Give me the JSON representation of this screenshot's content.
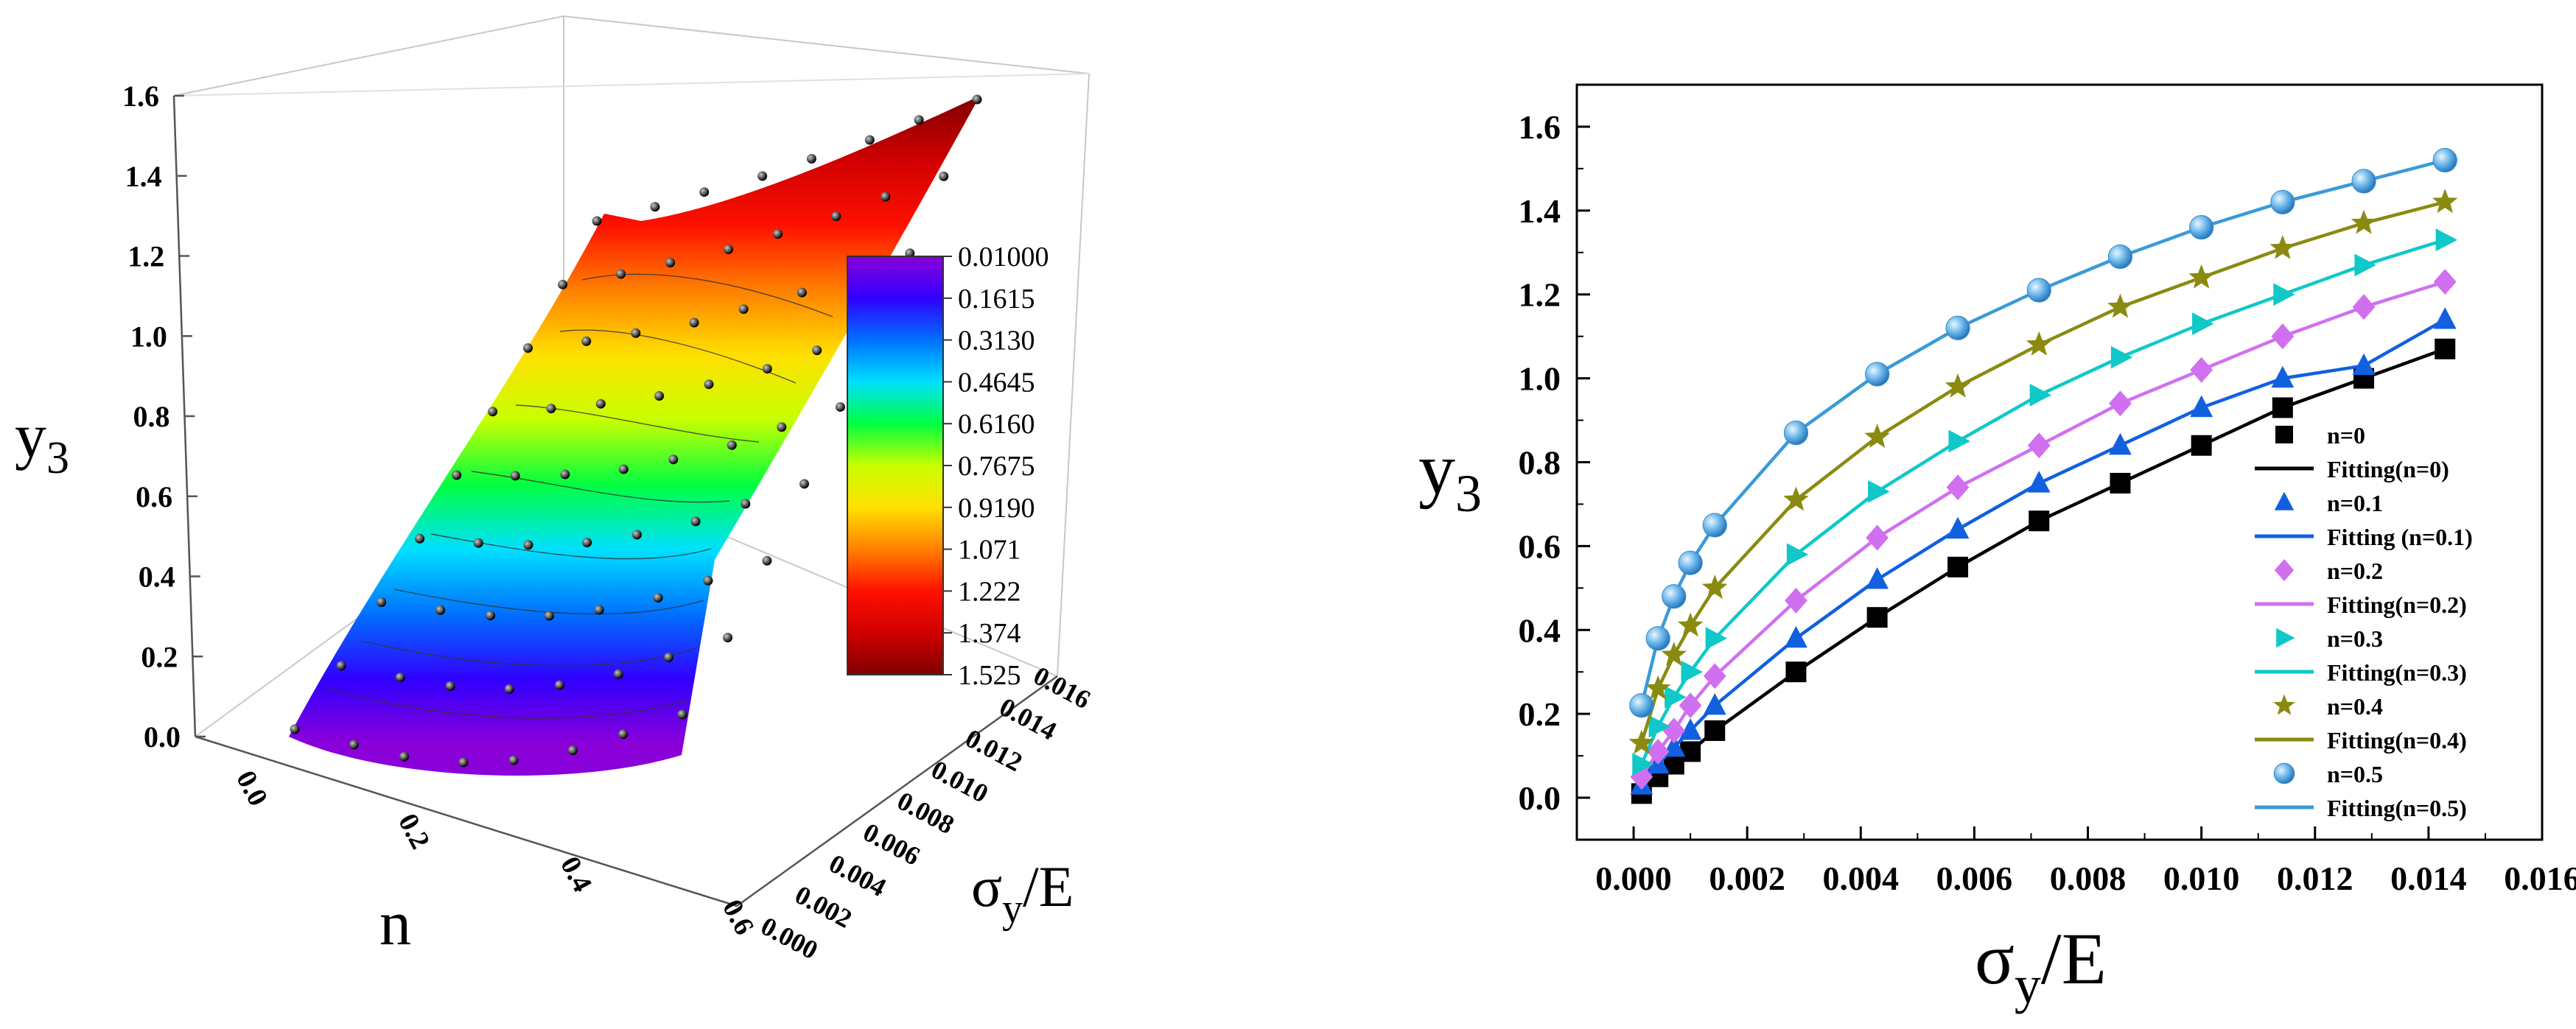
{
  "chart_data": [
    {
      "type": "surface",
      "xlabel": "n",
      "ylabel": "σ",
      "ylabel_sub": "y",
      "ylabel_tail": "/E",
      "zlabel": "y",
      "zlabel_sub": "3",
      "xticks": [
        "0.0",
        "0.2",
        "0.4",
        "0.6"
      ],
      "yticks": [
        "0.000",
        "0.002",
        "0.004",
        "0.006",
        "0.008",
        "0.010",
        "0.012",
        "0.014",
        "0.016"
      ],
      "zticks": [
        "0.0",
        "0.2",
        "0.4",
        "0.6",
        "0.8",
        "1.0",
        "1.2",
        "1.4",
        "1.6"
      ],
      "xlim": [
        0,
        0.6
      ],
      "ylim": [
        0,
        0.016
      ],
      "zlim": [
        0,
        1.6
      ],
      "colorbar": {
        "labels": [
          "0.01000",
          "0.1615",
          "0.3130",
          "0.4645",
          "0.6160",
          "0.7675",
          "0.9190",
          "1.071",
          "1.222",
          "1.374",
          "1.525"
        ],
        "colors": [
          "#8a00d8",
          "#3000ff",
          "#0070ff",
          "#00e0ff",
          "#00ff40",
          "#c8ff00",
          "#ffe000",
          "#ff8000",
          "#ff1000",
          "#d00000",
          "#800000"
        ]
      }
    },
    {
      "type": "line",
      "xlabel": "σ",
      "xlabel_sub": "y",
      "xlabel_tail": "/E",
      "ylabel": "y",
      "ylabel_sub": "3",
      "xlim": [
        -0.001,
        0.016
      ],
      "ylim": [
        -0.1,
        1.7
      ],
      "xticks": [
        "0.000",
        "0.002",
        "0.004",
        "0.006",
        "0.008",
        "0.010",
        "0.012",
        "0.014",
        "0.016"
      ],
      "yticks": [
        "0.0",
        "0.2",
        "0.4",
        "0.6",
        "0.8",
        "1.0",
        "1.2",
        "1.4",
        "1.6"
      ],
      "legend_position": "bottom-right",
      "x": [
        0.00014,
        0.00043,
        0.00071,
        0.001,
        0.00143,
        0.00286,
        0.00429,
        0.00571,
        0.00714,
        0.00857,
        0.01,
        0.01143,
        0.01286,
        0.01429
      ],
      "series": [
        {
          "name": "n=0",
          "fit_name": "Fitting(n=0)",
          "color": "#000000",
          "marker": "square",
          "values": [
            0.01,
            0.05,
            0.08,
            0.11,
            0.16,
            0.3,
            0.43,
            0.55,
            0.66,
            0.75,
            0.84,
            0.93,
            1.0,
            1.07
          ]
        },
        {
          "name": "n=0.1",
          "fit_name": "Fitting (n=0.1)",
          "color": "#1060e0",
          "marker": "triangle-up",
          "values": [
            0.03,
            0.08,
            0.12,
            0.16,
            0.22,
            0.38,
            0.52,
            0.64,
            0.75,
            0.84,
            0.93,
            1.0,
            1.03,
            1.14
          ]
        },
        {
          "name": "n=0.2",
          "fit_name": "Fitting(n=0.2)",
          "color": "#d070f0",
          "marker": "diamond",
          "values": [
            0.05,
            0.11,
            0.16,
            0.22,
            0.29,
            0.47,
            0.62,
            0.74,
            0.84,
            0.94,
            1.02,
            1.1,
            1.17,
            1.23
          ]
        },
        {
          "name": "n=0.3",
          "fit_name": "Fitting(n=0.3)",
          "color": "#10c8c8",
          "marker": "triangle-right",
          "values": [
            0.08,
            0.17,
            0.24,
            0.3,
            0.38,
            0.58,
            0.73,
            0.85,
            0.96,
            1.05,
            1.13,
            1.2,
            1.27,
            1.33
          ]
        },
        {
          "name": "n=0.4",
          "fit_name": "Fitting(n=0.4)",
          "color": "#8a8a10",
          "marker": "star",
          "values": [
            0.13,
            0.26,
            0.34,
            0.41,
            0.5,
            0.71,
            0.86,
            0.98,
            1.08,
            1.17,
            1.24,
            1.31,
            1.37,
            1.42
          ]
        },
        {
          "name": "n=0.5",
          "fit_name": "Fitting(n=0.5)",
          "color": "#3a9ad8",
          "marker": "circle",
          "values": [
            0.22,
            0.38,
            0.48,
            0.56,
            0.65,
            0.87,
            1.01,
            1.12,
            1.21,
            1.29,
            1.36,
            1.42,
            1.47,
            1.52
          ]
        }
      ]
    }
  ]
}
